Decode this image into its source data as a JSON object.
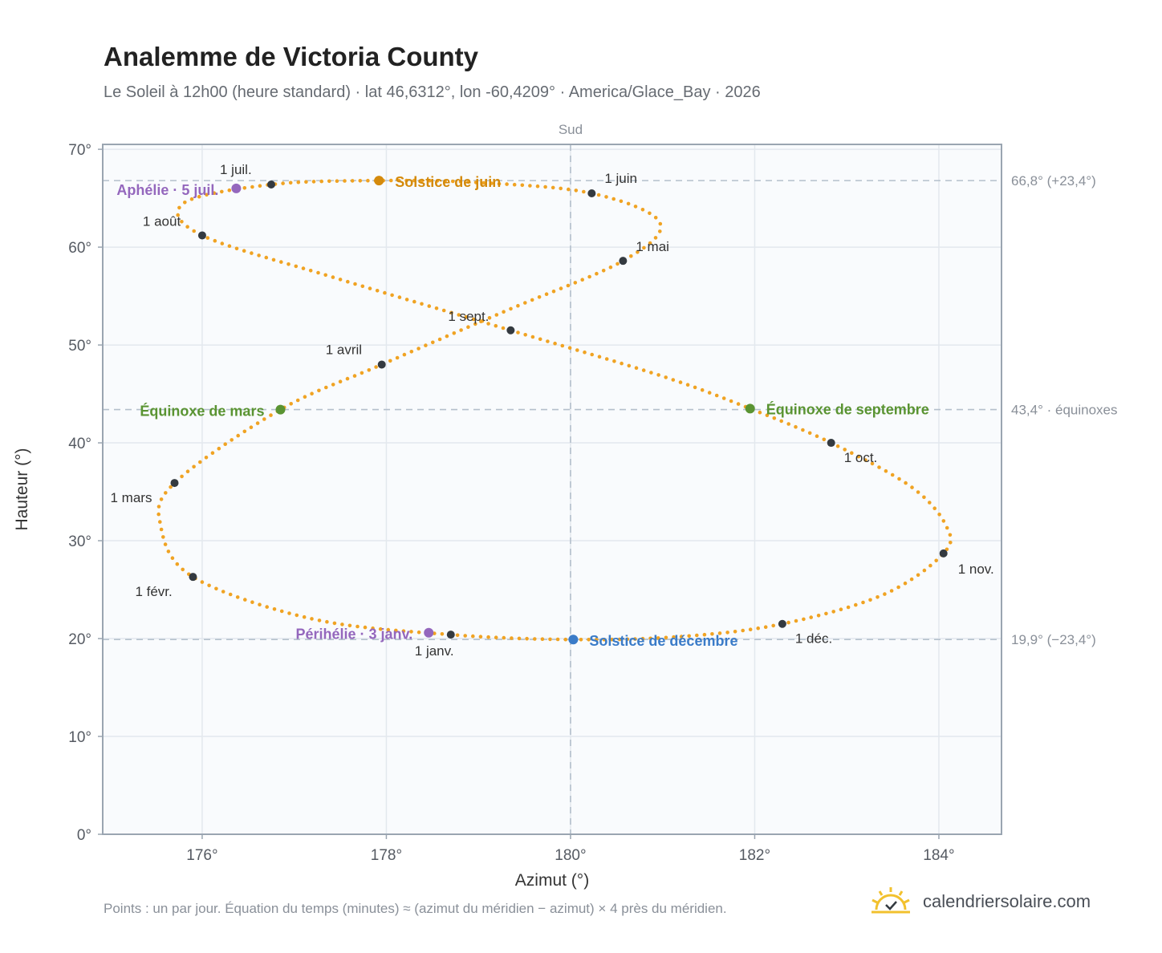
{
  "header": {
    "title": "Analemme de Victoria County",
    "subtitle": "Le Soleil à 12h00 (heure standard) · lat 46,6312°, lon -60,4209° · America/Glace_Bay · 2026"
  },
  "footer": {
    "note": "Points : un par jour. Équation du temps (minutes) ≈ (azimut du méridien − azimut) × 4 près du méridien.",
    "brand": "calendriersolaire.com",
    "brand_icon": "sun-logo-icon"
  },
  "colors": {
    "curve": "#f0a323",
    "month_marker": "#343a40",
    "solstice_june": "#d48a0c",
    "solstice_december": "#3a7bc8",
    "equinox": "#5a9432",
    "apsis": "#9467bd",
    "plot_background": "#f9fbfd",
    "grid": "#e3e8ee",
    "reference_line": "#b4c0cc"
  },
  "chart_data": {
    "type": "scatter",
    "title": "Analemme de Victoria County",
    "xlabel": "Azimut (°)",
    "ylabel": "Hauteur (°)",
    "xlim": [
      174.92,
      184.68
    ],
    "ylim": [
      0,
      70.5
    ],
    "x_ticks": [
      176,
      178,
      180,
      182,
      184
    ],
    "x_tick_labels": [
      "176°",
      "178°",
      "180°",
      "182°",
      "184°"
    ],
    "y_ticks": [
      0,
      10,
      20,
      30,
      40,
      50,
      60,
      70
    ],
    "y_tick_labels": [
      "0°",
      "10°",
      "20°",
      "30°",
      "40°",
      "50°",
      "60°",
      "70°"
    ],
    "grid": true,
    "meridian": {
      "azimuth": 180,
      "label": "Sud"
    },
    "reference_lines": [
      {
        "altitude": 66.8,
        "label": "66,8° (+23,4°)"
      },
      {
        "altitude": 43.4,
        "label": "43,4° · équinoxes"
      },
      {
        "altitude": 19.9,
        "label": "19,9° (−23,4°)"
      }
    ],
    "month_points": [
      {
        "label": "1 janv.",
        "azimuth": 178.7,
        "altitude": 20.4
      },
      {
        "label": "1 févr.",
        "azimuth": 175.9,
        "altitude": 26.3
      },
      {
        "label": "1 mars",
        "azimuth": 175.7,
        "altitude": 35.9
      },
      {
        "label": "1 avril",
        "azimuth": 177.95,
        "altitude": 48.0
      },
      {
        "label": "1 mai",
        "azimuth": 180.57,
        "altitude": 58.6
      },
      {
        "label": "1 juin",
        "azimuth": 180.23,
        "altitude": 65.5
      },
      {
        "label": "1 juil.",
        "azimuth": 176.75,
        "altitude": 66.4
      },
      {
        "label": "1 août",
        "azimuth": 176.0,
        "altitude": 61.2
      },
      {
        "label": "1 sept.",
        "azimuth": 179.35,
        "altitude": 51.5
      },
      {
        "label": "1 oct.",
        "azimuth": 182.83,
        "altitude": 40.0
      },
      {
        "label": "1 nov.",
        "azimuth": 184.05,
        "altitude": 28.7
      },
      {
        "label": "1 déc.",
        "azimuth": 182.3,
        "altitude": 21.5
      }
    ],
    "events": [
      {
        "label": "Solstice de juin",
        "azimuth": 177.92,
        "altitude": 66.8,
        "color_key": "solstice_june"
      },
      {
        "label": "Solstice de décembre",
        "azimuth": 180.03,
        "altitude": 19.9,
        "color_key": "solstice_december"
      },
      {
        "label": "Équinoxe de mars",
        "azimuth": 176.85,
        "altitude": 43.4,
        "color_key": "equinox"
      },
      {
        "label": "Équinoxe de septembre",
        "azimuth": 181.95,
        "altitude": 43.5,
        "color_key": "equinox"
      },
      {
        "label": "Aphélie · 5 juil.",
        "azimuth": 176.37,
        "altitude": 66.0,
        "color_key": "apsis"
      },
      {
        "label": "Périhélie · 3 janv.",
        "azimuth": 178.46,
        "altitude": 20.6,
        "color_key": "apsis"
      }
    ],
    "daily_path_anchors": [
      {
        "azimuth": 180.03,
        "altitude": 19.9
      },
      {
        "azimuth": 178.7,
        "altitude": 20.4
      },
      {
        "azimuth": 177.2,
        "altitude": 22.0
      },
      {
        "azimuth": 175.9,
        "altitude": 26.3
      },
      {
        "azimuth": 175.55,
        "altitude": 31.5
      },
      {
        "azimuth": 175.7,
        "altitude": 35.9
      },
      {
        "azimuth": 176.85,
        "altitude": 43.4
      },
      {
        "azimuth": 177.95,
        "altitude": 48.0
      },
      {
        "azimuth": 179.3,
        "altitude": 53.5
      },
      {
        "azimuth": 180.57,
        "altitude": 58.6
      },
      {
        "azimuth": 180.97,
        "altitude": 62.5
      },
      {
        "azimuth": 180.23,
        "altitude": 65.5
      },
      {
        "azimuth": 179.0,
        "altitude": 66.6
      },
      {
        "azimuth": 177.92,
        "altitude": 66.8
      },
      {
        "azimuth": 176.75,
        "altitude": 66.4
      },
      {
        "azimuth": 175.8,
        "altitude": 64.5
      },
      {
        "azimuth": 176.0,
        "altitude": 61.2
      },
      {
        "azimuth": 177.5,
        "altitude": 56.7
      },
      {
        "azimuth": 179.35,
        "altitude": 51.5
      },
      {
        "azimuth": 181.0,
        "altitude": 46.8
      },
      {
        "azimuth": 181.95,
        "altitude": 43.5
      },
      {
        "azimuth": 182.83,
        "altitude": 40.0
      },
      {
        "azimuth": 183.7,
        "altitude": 35.5
      },
      {
        "azimuth": 184.08,
        "altitude": 31.5
      },
      {
        "azimuth": 184.05,
        "altitude": 28.7
      },
      {
        "azimuth": 183.4,
        "altitude": 24.5
      },
      {
        "azimuth": 182.3,
        "altitude": 21.5
      },
      {
        "azimuth": 181.2,
        "altitude": 20.2
      },
      {
        "azimuth": 180.03,
        "altitude": 19.9
      }
    ]
  }
}
